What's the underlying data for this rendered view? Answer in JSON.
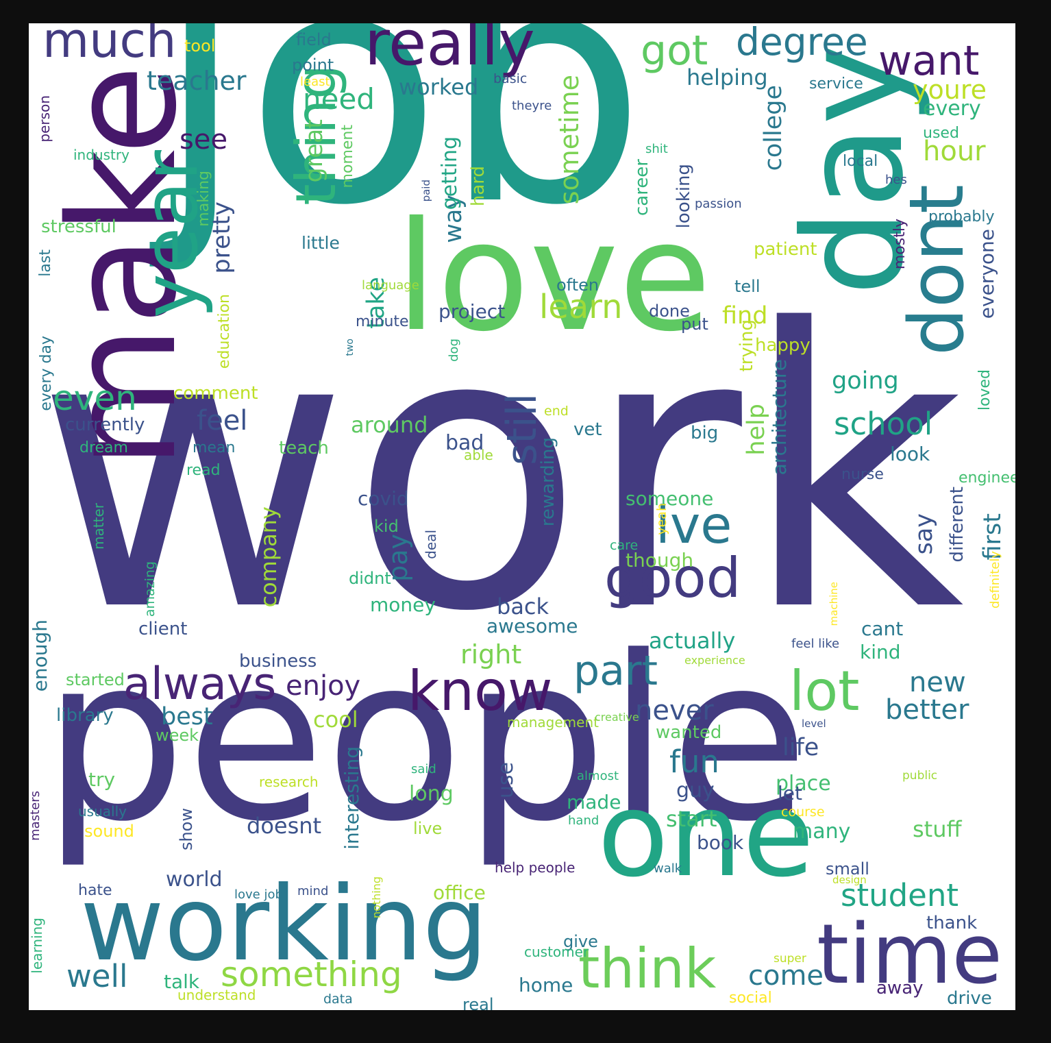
{
  "palette": {
    "background": "#ffffff",
    "frame": "#0e0e0e",
    "viridis": [
      "#482475",
      "#414487",
      "#355f8d",
      "#2a788e",
      "#21918c",
      "#22a884",
      "#44bf70",
      "#7ad151",
      "#bddf26",
      "#fde725"
    ]
  },
  "words": [
    {
      "text": "work",
      "color": "#433b80"
    },
    {
      "text": "job",
      "color": "#1f9a8a"
    },
    {
      "text": "people",
      "color": "#433b80"
    },
    {
      "text": "love",
      "color": "#5ec962"
    },
    {
      "text": "make",
      "color": "#46186a"
    },
    {
      "text": "day",
      "color": "#1f9a8a"
    },
    {
      "text": "one",
      "color": "#21a585"
    },
    {
      "text": "working",
      "color": "#2a788e"
    },
    {
      "text": "time",
      "color": "#433b80"
    },
    {
      "text": "year",
      "color": "#20a386"
    },
    {
      "text": "dont",
      "color": "#287d8e"
    },
    {
      "text": "really",
      "color": "#46186a"
    },
    {
      "text": "good",
      "color": "#433b80"
    },
    {
      "text": "know",
      "color": "#46186a"
    },
    {
      "text": "thing",
      "color": "#2fb47c"
    },
    {
      "text": "think",
      "color": "#6ccd5a"
    },
    {
      "text": "lot",
      "color": "#5ec962"
    },
    {
      "text": "ive",
      "color": "#2a788e"
    },
    {
      "text": "much",
      "color": "#433b80"
    },
    {
      "text": "always",
      "color": "#482475"
    },
    {
      "text": "part",
      "color": "#2a788e"
    },
    {
      "text": "still",
      "color": "#3b528b"
    },
    {
      "text": "want",
      "color": "#46186a"
    },
    {
      "text": "got",
      "color": "#5ec962"
    },
    {
      "text": "degree",
      "color": "#2a788e"
    },
    {
      "text": "something",
      "color": "#8fd744"
    },
    {
      "text": "even",
      "color": "#2fb47c"
    },
    {
      "text": "student",
      "color": "#21a585"
    },
    {
      "text": "well",
      "color": "#2a788e"
    },
    {
      "text": "learn",
      "color": "#a0da39"
    },
    {
      "text": "school",
      "color": "#20a386"
    },
    {
      "text": "fun",
      "color": "#2a788e"
    },
    {
      "text": "need",
      "color": "#2fb47c"
    },
    {
      "text": "enjoy",
      "color": "#482475"
    },
    {
      "text": "come",
      "color": "#2a788e"
    },
    {
      "text": "teacher",
      "color": "#2a788e"
    },
    {
      "text": "feel",
      "color": "#3b528b"
    },
    {
      "text": "never",
      "color": "#3b528b"
    },
    {
      "text": "better",
      "color": "#2a788e"
    },
    {
      "text": "new",
      "color": "#2a788e"
    },
    {
      "text": "pay",
      "color": "#2a788e"
    },
    {
      "text": "see",
      "color": "#46186a"
    },
    {
      "text": "hour",
      "color": "#a0da39"
    },
    {
      "text": "youre",
      "color": "#bddf26"
    },
    {
      "text": "right",
      "color": "#7ad151"
    },
    {
      "text": "sometime",
      "color": "#7ad151"
    },
    {
      "text": "find",
      "color": "#bddf26"
    },
    {
      "text": "take",
      "color": "#21a585"
    },
    {
      "text": "college",
      "color": "#2a788e"
    },
    {
      "text": "pretty",
      "color": "#3b528b"
    },
    {
      "text": "great",
      "color": "#5ec962"
    },
    {
      "text": "way",
      "color": "#2a788e"
    },
    {
      "text": "first",
      "color": "#2a788e"
    },
    {
      "text": "life",
      "color": "#3b528b"
    },
    {
      "text": "best",
      "color": "#2a788e"
    },
    {
      "text": "going",
      "color": "#20a386"
    },
    {
      "text": "help",
      "color": "#7ad151"
    },
    {
      "text": "say",
      "color": "#3b528b"
    },
    {
      "text": "actually",
      "color": "#20a386"
    },
    {
      "text": "back",
      "color": "#3b528b"
    },
    {
      "text": "stuff",
      "color": "#5ec962"
    },
    {
      "text": "cool",
      "color": "#a0da39"
    },
    {
      "text": "start",
      "color": "#44bf70"
    },
    {
      "text": "doesnt",
      "color": "#3b528b"
    },
    {
      "text": "company",
      "color": "#a0da39"
    },
    {
      "text": "around",
      "color": "#5ec962"
    },
    {
      "text": "helping",
      "color": "#2a788e"
    },
    {
      "text": "worked",
      "color": "#2a788e"
    },
    {
      "text": "every",
      "color": "#2fb47c"
    },
    {
      "text": "getting",
      "color": "#21a585"
    },
    {
      "text": "long",
      "color": "#5ec962"
    },
    {
      "text": "world",
      "color": "#3b528b"
    },
    {
      "text": "many",
      "color": "#2fb47c"
    },
    {
      "text": "place",
      "color": "#44bf70"
    },
    {
      "text": "guy",
      "color": "#3b528b"
    },
    {
      "text": "use",
      "color": "#3b528b"
    },
    {
      "text": "bad",
      "color": "#3b528b"
    },
    {
      "text": "kind",
      "color": "#2fb47c"
    },
    {
      "text": "cant",
      "color": "#2a788e"
    },
    {
      "text": "try",
      "color": "#5ec962"
    },
    {
      "text": "book",
      "color": "#3b528b"
    },
    {
      "text": "made",
      "color": "#2fb47c"
    },
    {
      "text": "home",
      "color": "#2a788e"
    },
    {
      "text": "talk",
      "color": "#2fb47c"
    },
    {
      "text": "enough",
      "color": "#2a788e"
    },
    {
      "text": "project",
      "color": "#3b528b"
    },
    {
      "text": "architecture",
      "color": "#2a788e"
    },
    {
      "text": "interesting",
      "color": "#2a788e"
    },
    {
      "text": "everyone",
      "color": "#3b528b"
    },
    {
      "text": "look",
      "color": "#2a788e"
    },
    {
      "text": "let",
      "color": "#3b528b"
    },
    {
      "text": "money",
      "color": "#2fb47c"
    },
    {
      "text": "covid",
      "color": "#3b528b"
    },
    {
      "text": "though",
      "color": "#7ad151"
    },
    {
      "text": "someone",
      "color": "#44bf70"
    },
    {
      "text": "stressful",
      "color": "#5ec962"
    },
    {
      "text": "awesome",
      "color": "#2a788e"
    },
    {
      "text": "office",
      "color": "#a0da39"
    },
    {
      "text": "thank",
      "color": "#3b528b"
    },
    {
      "text": "client",
      "color": "#3b528b"
    },
    {
      "text": "big",
      "color": "#2a788e"
    },
    {
      "text": "vet",
      "color": "#2a788e"
    },
    {
      "text": "currently",
      "color": "#3b528b"
    },
    {
      "text": "career",
      "color": "#2fb47c"
    },
    {
      "text": "hard",
      "color": "#a0da39"
    },
    {
      "text": "looking",
      "color": "#3b528b"
    },
    {
      "text": "trying",
      "color": "#bddf26"
    },
    {
      "text": "happy",
      "color": "#bddf26"
    },
    {
      "text": "wanted",
      "color": "#5ec962"
    },
    {
      "text": "library",
      "color": "#2a788e"
    },
    {
      "text": "business",
      "color": "#3b528b"
    },
    {
      "text": "comment",
      "color": "#bddf26"
    },
    {
      "text": "patient",
      "color": "#bddf26"
    },
    {
      "text": "different",
      "color": "#3b528b"
    },
    {
      "text": "rewarding",
      "color": "#2a788e"
    },
    {
      "text": "teach",
      "color": "#5ec962"
    },
    {
      "text": "away",
      "color": "#482475"
    },
    {
      "text": "drive",
      "color": "#2a788e"
    },
    {
      "text": "little",
      "color": "#2a788e"
    },
    {
      "text": "tool",
      "color": "#fde725"
    },
    {
      "text": "field",
      "color": "#2a788e"
    },
    {
      "text": "point",
      "color": "#2a788e"
    },
    {
      "text": "making",
      "color": "#5ec962"
    },
    {
      "text": "education",
      "color": "#bddf26"
    },
    {
      "text": "minute",
      "color": "#3b528b"
    },
    {
      "text": "moment",
      "color": "#5ec962"
    },
    {
      "text": "started",
      "color": "#5ec962"
    },
    {
      "text": "week",
      "color": "#5ec962"
    },
    {
      "text": "sound",
      "color": "#fde725"
    },
    {
      "text": "didnt",
      "color": "#2fb47c"
    },
    {
      "text": "kid",
      "color": "#44bf70"
    },
    {
      "text": "often",
      "color": "#2a788e"
    },
    {
      "text": "tell",
      "color": "#2a788e"
    },
    {
      "text": "done",
      "color": "#3b528b"
    },
    {
      "text": "put",
      "color": "#3b528b"
    },
    {
      "text": "show",
      "color": "#3b528b"
    },
    {
      "text": "live",
      "color": "#a0da39"
    },
    {
      "text": "small",
      "color": "#3b528b"
    },
    {
      "text": "give",
      "color": "#2a788e"
    },
    {
      "text": "real",
      "color": "#2a788e"
    },
    {
      "text": "local",
      "color": "#2a788e"
    },
    {
      "text": "used",
      "color": "#2fb47c"
    },
    {
      "text": "service",
      "color": "#2a788e"
    },
    {
      "text": "mostly",
      "color": "#482475"
    },
    {
      "text": "probably",
      "color": "#2a788e"
    },
    {
      "text": "loved",
      "color": "#2fb47c"
    },
    {
      "text": "engineer",
      "color": "#44bf70"
    },
    {
      "text": "nurse",
      "color": "#3b528b"
    },
    {
      "text": "mean",
      "color": "#2a788e"
    },
    {
      "text": "dream",
      "color": "#2fb47c"
    },
    {
      "text": "read",
      "color": "#2fb47c"
    },
    {
      "text": "person",
      "color": "#482475"
    },
    {
      "text": "every day",
      "color": "#2a788e"
    },
    {
      "text": "last",
      "color": "#2a788e"
    },
    {
      "text": "industry",
      "color": "#2fb47c"
    },
    {
      "text": "deal",
      "color": "#3b528b"
    },
    {
      "text": "able",
      "color": "#a0da39"
    },
    {
      "text": "matter",
      "color": "#2fb47c"
    },
    {
      "text": "amazing",
      "color": "#2fb47c"
    },
    {
      "text": "care",
      "color": "#2fb47c"
    },
    {
      "text": "yeah",
      "color": "#fde725"
    },
    {
      "text": "dog",
      "color": "#2fb47c"
    },
    {
      "text": "end",
      "color": "#bddf26"
    },
    {
      "text": "basic",
      "color": "#3b528b"
    },
    {
      "text": "theyre",
      "color": "#3b528b"
    },
    {
      "text": "least",
      "color": "#fde725"
    },
    {
      "text": "shit",
      "color": "#2fb47c"
    },
    {
      "text": "passion",
      "color": "#3b528b"
    },
    {
      "text": "hes",
      "color": "#3b528b"
    },
    {
      "text": "paid",
      "color": "#3b528b"
    },
    {
      "text": "language",
      "color": "#a0da39"
    },
    {
      "text": "two",
      "color": "#2a788e"
    },
    {
      "text": "management",
      "color": "#a0da39"
    },
    {
      "text": "creative",
      "color": "#7ad151"
    },
    {
      "text": "level",
      "color": "#3b528b"
    },
    {
      "text": "experience",
      "color": "#a0da39"
    },
    {
      "text": "machine",
      "color": "#fde725"
    },
    {
      "text": "definitely",
      "color": "#fde725"
    },
    {
      "text": "said",
      "color": "#2fb47c"
    },
    {
      "text": "almost",
      "color": "#2fb47c"
    },
    {
      "text": "public",
      "color": "#a0da39"
    },
    {
      "text": "course",
      "color": "#fde725"
    },
    {
      "text": "research",
      "color": "#bddf26"
    },
    {
      "text": "hand",
      "color": "#2fb47c"
    },
    {
      "text": "usually",
      "color": "#2a788e"
    },
    {
      "text": "masters",
      "color": "#482475"
    },
    {
      "text": "help people",
      "color": "#482475"
    },
    {
      "text": "walk",
      "color": "#2a788e"
    },
    {
      "text": "design",
      "color": "#bddf26"
    },
    {
      "text": "hate",
      "color": "#3b528b"
    },
    {
      "text": "love job",
      "color": "#2a788e"
    },
    {
      "text": "mind",
      "color": "#3b528b"
    },
    {
      "text": "nothing",
      "color": "#bddf26"
    },
    {
      "text": "learning",
      "color": "#2fb47c"
    },
    {
      "text": "customer",
      "color": "#2fb47c"
    },
    {
      "text": "super",
      "color": "#bddf26"
    },
    {
      "text": "social",
      "color": "#fde725"
    },
    {
      "text": "understand",
      "color": "#bddf26"
    },
    {
      "text": "data",
      "color": "#2a788e"
    },
    {
      "text": "feel like",
      "color": "#3b528b"
    }
  ]
}
